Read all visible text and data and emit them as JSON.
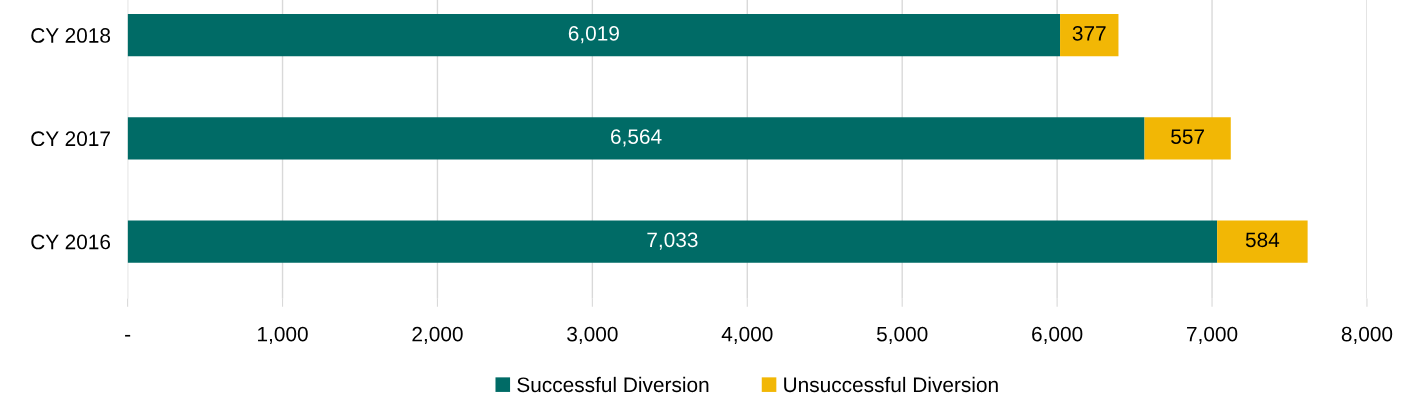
{
  "chart_data": {
    "type": "bar",
    "orientation": "horizontal",
    "stacked": true,
    "categories": [
      "CY 2018",
      "CY 2017",
      "CY 2016"
    ],
    "series": [
      {
        "name": "Successful Diversion",
        "color": "#006b66",
        "values": [
          6019,
          6564,
          7033
        ],
        "value_labels": [
          "6,019",
          "6,564",
          "7,033"
        ]
      },
      {
        "name": "Unsuccessful Diversion",
        "color": "#f2b705",
        "values": [
          377,
          557,
          584
        ],
        "value_labels": [
          "377",
          "557",
          "584"
        ]
      }
    ],
    "xlim": [
      0,
      8000
    ],
    "xticks": [
      {
        "value": 0,
        "label": "-"
      },
      {
        "value": 1000,
        "label": "1,000"
      },
      {
        "value": 2000,
        "label": "2,000"
      },
      {
        "value": 3000,
        "label": "3,000"
      },
      {
        "value": 4000,
        "label": "4,000"
      },
      {
        "value": 5000,
        "label": "5,000"
      },
      {
        "value": 6000,
        "label": "6,000"
      },
      {
        "value": 7000,
        "label": "7,000"
      },
      {
        "value": 8000,
        "label": "8,000"
      }
    ],
    "grid": "x",
    "legend": "bottom"
  }
}
